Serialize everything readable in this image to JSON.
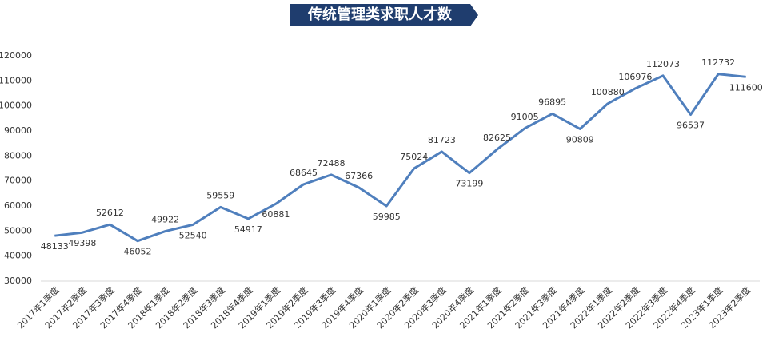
{
  "chart_data": {
    "type": "line",
    "title": "传统管理类求职人才数",
    "categories": [
      "2017年1季度",
      "2017年2季度",
      "2017年3季度",
      "2017年4季度",
      "2018年1季度",
      "2018年2季度",
      "2018年3季度",
      "2018年4季度",
      "2019年1季度",
      "2019年2季度",
      "2019年3季度",
      "2019年4季度",
      "2020年1季度",
      "2020年2季度",
      "2020年3季度",
      "2020年4季度",
      "2021年1季度",
      "2021年2季度",
      "2021年3季度",
      "2021年4季度",
      "2022年1季度",
      "2022年2季度",
      "2022年3季度",
      "2022年4季度",
      "2023年1季度",
      "2023年2季度"
    ],
    "series": [
      {
        "name": "传统管理类求职人才数",
        "color": "#4f7fbd",
        "values": [
          48133,
          49398,
          52612,
          46052,
          49922,
          52540,
          59559,
          54917,
          60881,
          68645,
          72488,
          67366,
          59985,
          75024,
          81723,
          73199,
          82625,
          91005,
          96895,
          90809,
          100880,
          106976,
          112073,
          96537,
          112732,
          111600
        ]
      }
    ],
    "ylim": [
      30000,
      120000
    ],
    "yticks": [
      30000,
      40000,
      50000,
      60000,
      70000,
      80000,
      90000,
      100000,
      110000,
      120000
    ],
    "grid": false
  }
}
